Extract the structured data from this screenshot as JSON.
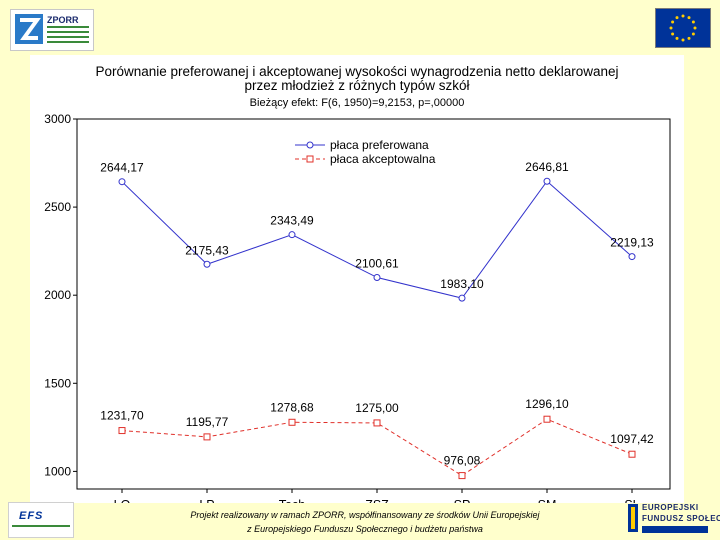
{
  "logos": {
    "zporr_text": "ZPORR",
    "efs_text": "EFS",
    "fs_line1": "EUROPEJSKI",
    "fs_line2": "FUNDUSZ SPOŁECZNY"
  },
  "footer": {
    "line1": "Projekt realizowany w ramach ZPORR, współfinansowany ze środków Unii Europejskiej",
    "line2": "z Europejskiego Funduszu Społecznego i budżetu państwa"
  },
  "colors": {
    "background": "#ffffcc",
    "preferred": "#3333cc",
    "accepted": "#e0302a",
    "eu_blue": "#003399",
    "eu_gold": "#ffcc00"
  },
  "chart_data": {
    "type": "line",
    "title_line1": "Porównanie preferowanej i akceptowanej wysokości wynagrodzenia netto deklarowanej",
    "title_line2": "przez młodzież z różnych typów szkół",
    "subtitle": "Bieżący efekt: F(6, 1950)=9,2153, p=,00000",
    "categories": [
      "LO",
      "LP",
      "Tech",
      "ZSZ",
      "SP",
      "SM",
      "SL"
    ],
    "ylim": [
      900,
      3000
    ],
    "yticks": [
      1000,
      1500,
      2000,
      2500,
      3000
    ],
    "legend_position": "top-center",
    "series": [
      {
        "name": "płaca preferowana",
        "values": [
          2644.17,
          2175.43,
          2343.49,
          2100.61,
          1983.1,
          2646.81,
          2219.13
        ],
        "labels": [
          "2644,17",
          "2175,43",
          "2343,49",
          "2100,61",
          "1983,10",
          "2646,81",
          "2219,13"
        ]
      },
      {
        "name": "płaca akceptowalna",
        "values": [
          1231.7,
          1195.77,
          1278.68,
          1275.0,
          976.08,
          1296.1,
          1097.42
        ],
        "labels": [
          "1231,70",
          "1195,77",
          "1278,68",
          "1275,00",
          "976,08",
          "1296,10",
          "1097,42"
        ]
      }
    ]
  }
}
